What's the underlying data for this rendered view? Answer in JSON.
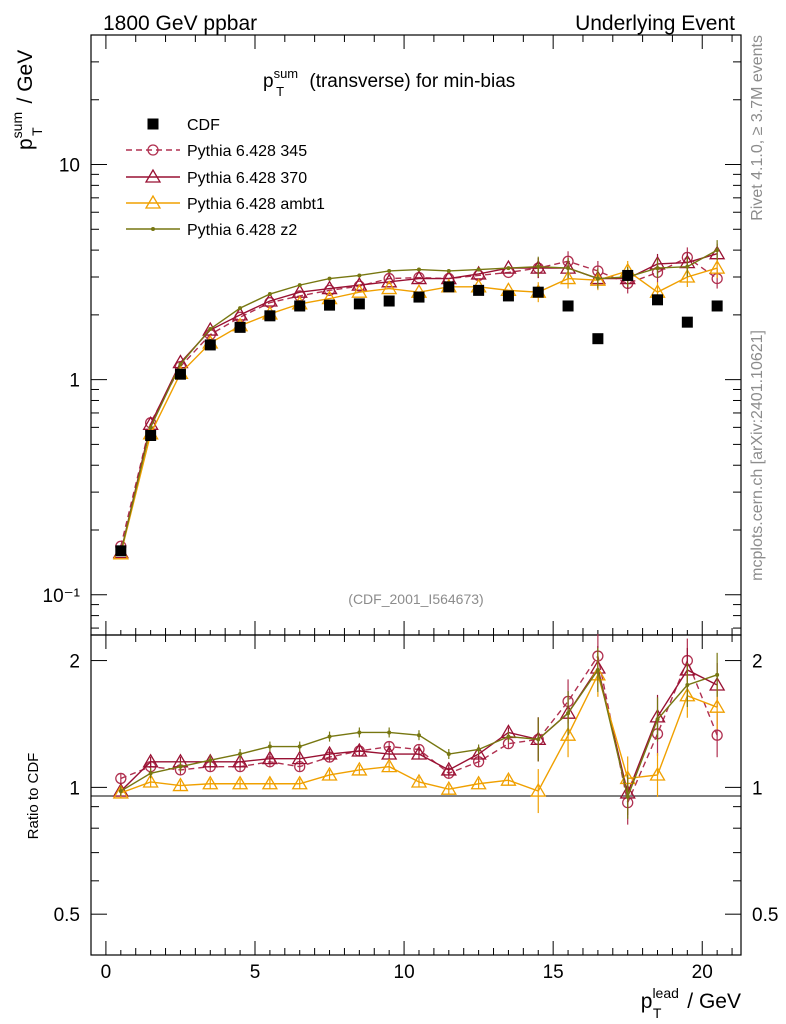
{
  "header": {
    "left": "1800 GeV ppbar",
    "right": "Underlying Event"
  },
  "side_text": {
    "top": "Rivet 4.1.0, ≥ 3.7M events",
    "bottom": "mcplots.cern.ch [arXiv:2401.10621]"
  },
  "chart_data": {
    "type": "line",
    "title_main": "p",
    "title_sup": "sum",
    "title_sub": "T",
    "title_rest": " (transverse) for min-bias",
    "ylabel_main": "p",
    "ylabel_sup": "sum",
    "ylabel_sub": "T",
    "ylabel_rest": " / GeV",
    "xlabel_main": "p",
    "xlabel_sup": "lead",
    "xlabel_sub": "T",
    "xlabel_rest": " / GeV",
    "analysis_id": "(CDF_2001_I564673)",
    "ylim": [
      0.065,
      40
    ],
    "xlim": [
      -0.5,
      21.3
    ],
    "yscale": "log",
    "x_ticks": [
      "0",
      "5",
      "10",
      "15",
      "20"
    ],
    "y_ticks": [
      "10⁻¹",
      "1",
      "10"
    ],
    "ratio": {
      "ylabel": "Ratio to CDF",
      "ylim": [
        0.4,
        2.3
      ],
      "ticks": [
        "0.5",
        "1",
        "2"
      ]
    },
    "x": [
      0.5,
      1.5,
      2.5,
      3.5,
      4.5,
      5.5,
      6.5,
      7.5,
      8.5,
      9.5,
      10.5,
      11.5,
      12.5,
      13.5,
      14.5,
      15.5,
      16.5,
      17.5,
      18.5,
      19.5,
      20.5
    ],
    "data": {
      "name": "CDF",
      "values": [
        0.16,
        0.55,
        1.06,
        1.45,
        1.75,
        1.98,
        2.2,
        2.22,
        2.25,
        2.32,
        2.42,
        2.7,
        2.6,
        2.45,
        2.55,
        2.2,
        1.55,
        3.05,
        2.35,
        1.85,
        2.2
      ]
    },
    "series": [
      {
        "name": "Pythia 6.428 345",
        "color": "#b03050",
        "marker": "circle",
        "dash": "dashed",
        "values": [
          0.168,
          0.63,
          1.15,
          1.62,
          1.95,
          2.28,
          2.45,
          2.6,
          2.72,
          2.95,
          2.98,
          2.95,
          3.05,
          3.15,
          3.3,
          3.55,
          3.2,
          2.8,
          3.15,
          3.7,
          2.95
        ]
      },
      {
        "name": "Pythia 6.428 370",
        "color": "#991133",
        "marker": "triangle",
        "dash": "solid",
        "values": [
          0.157,
          0.62,
          1.2,
          1.7,
          2.0,
          2.32,
          2.55,
          2.65,
          2.75,
          2.85,
          2.95,
          2.95,
          3.1,
          3.3,
          3.3,
          3.3,
          2.95,
          2.95,
          3.45,
          3.5,
          3.85
        ]
      },
      {
        "name": "Pythia 6.428 ambt1",
        "color": "#f0a000",
        "marker": "triangle",
        "dash": "solid",
        "values": [
          0.155,
          0.56,
          1.07,
          1.48,
          1.78,
          2.02,
          2.25,
          2.38,
          2.55,
          2.65,
          2.55,
          2.7,
          2.7,
          2.6,
          2.55,
          2.95,
          2.9,
          3.2,
          2.55,
          3.0,
          3.3
        ]
      },
      {
        "name": "Pythia 6.428 z2",
        "color": "#777711",
        "marker": "dot",
        "dash": "solid",
        "values": [
          0.157,
          0.6,
          1.18,
          1.72,
          2.15,
          2.5,
          2.75,
          2.95,
          3.05,
          3.2,
          3.25,
          3.2,
          3.25,
          3.3,
          3.35,
          3.3,
          2.95,
          3.0,
          3.3,
          3.35,
          4.0
        ]
      }
    ],
    "ratios": [
      [
        1.05,
        1.12,
        1.1,
        1.12,
        1.12,
        1.15,
        1.12,
        1.18,
        1.22,
        1.25,
        1.23,
        1.08,
        1.15,
        1.27,
        1.3,
        1.6,
        2.05,
        0.92,
        1.34,
        2.0,
        1.33
      ],
      [
        0.98,
        1.15,
        1.15,
        1.15,
        1.15,
        1.17,
        1.17,
        1.2,
        1.22,
        1.2,
        1.2,
        1.1,
        1.2,
        1.35,
        1.3,
        1.5,
        1.92,
        0.97,
        1.47,
        1.9,
        1.75
      ],
      [
        0.97,
        1.03,
        1.01,
        1.02,
        1.02,
        1.02,
        1.02,
        1.07,
        1.1,
        1.12,
        1.03,
        0.99,
        1.02,
        1.04,
        0.98,
        1.33,
        1.85,
        1.05,
        1.07,
        1.65,
        1.55
      ],
      [
        0.98,
        1.08,
        1.12,
        1.16,
        1.2,
        1.25,
        1.25,
        1.32,
        1.35,
        1.35,
        1.33,
        1.2,
        1.23,
        1.32,
        1.3,
        1.5,
        1.9,
        0.95,
        1.45,
        1.75,
        1.85
      ]
    ]
  }
}
